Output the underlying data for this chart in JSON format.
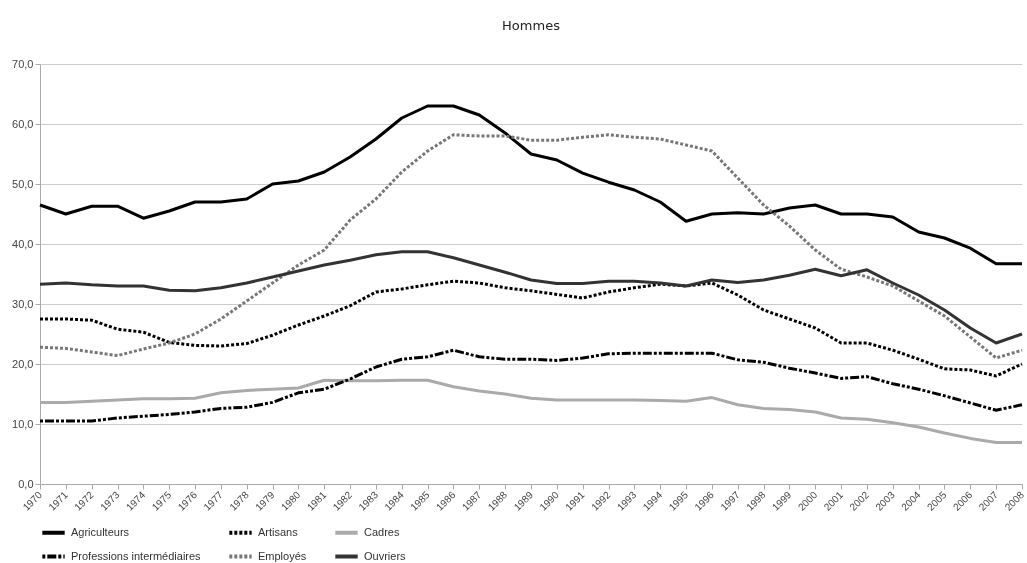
{
  "chart_data": {
    "type": "line",
    "title": "Hommes",
    "categories": [
      "1970",
      "1971",
      "1972",
      "1973",
      "1974",
      "1975",
      "1976",
      "1977",
      "1978",
      "1979",
      "1980",
      "1981",
      "1982",
      "1983",
      "1984",
      "1985",
      "1986",
      "1987",
      "1988",
      "1989",
      "1990",
      "1991",
      "1992",
      "1993",
      "1994",
      "1995",
      "1996",
      "1997",
      "1998",
      "1999",
      "2000",
      "2001",
      "2002",
      "2003",
      "2004",
      "2005",
      "2006",
      "2007",
      "2008"
    ],
    "series": [
      {
        "name": "Agriculteurs",
        "color": "#000000",
        "line_style": "solid",
        "values": [
          46.5,
          45,
          46.3,
          46.3,
          44.3,
          45.5,
          47,
          47,
          47.5,
          50,
          50.5,
          52,
          54.5,
          57.5,
          61,
          63,
          63,
          61.5,
          58.5,
          55,
          54,
          51.8,
          50.3,
          49,
          47,
          43.8,
          45,
          45.2,
          45,
          46,
          46.5,
          45,
          45,
          44.5,
          42,
          41,
          39.3,
          36.7,
          36.7
        ]
      },
      {
        "name": "Artisans",
        "color": "#000000",
        "line_style": "dotted",
        "values": [
          27.5,
          27.5,
          27.3,
          25.8,
          25.3,
          23.6,
          23.1,
          23,
          23.4,
          24.8,
          26.5,
          28,
          29.7,
          32,
          32.5,
          33.2,
          33.8,
          33.5,
          32.7,
          32.2,
          31.6,
          31,
          32,
          32.7,
          33.3,
          33,
          33.5,
          31.5,
          29,
          27.5,
          26,
          23.5,
          23.5,
          22.3,
          20.8,
          19.2,
          19,
          18,
          20
        ]
      },
      {
        "name": "Cadres",
        "color": "#aaaaaa",
        "line_style": "solid",
        "values": [
          13.6,
          13.6,
          13.8,
          14,
          14.2,
          14.2,
          14.3,
          15.2,
          15.6,
          15.8,
          16,
          17.3,
          17.2,
          17.2,
          17.3,
          17.3,
          16.2,
          15.5,
          15,
          14.3,
          14,
          14,
          14,
          14,
          13.9,
          13.8,
          14.4,
          13.2,
          12.6,
          12.4,
          12,
          11,
          10.8,
          10.2,
          9.5,
          8.5,
          7.6,
          6.9,
          6.9
        ]
      },
      {
        "name": "Professions intermédiaires",
        "color": "#000000",
        "line_style": "dashdot",
        "values": [
          10.5,
          10.5,
          10.5,
          11,
          11.3,
          11.6,
          12,
          12.6,
          12.8,
          13.6,
          15.2,
          15.8,
          17.5,
          19.5,
          20.8,
          21.2,
          22.3,
          21.2,
          20.8,
          20.8,
          20.6,
          21,
          21.7,
          21.8,
          21.8,
          21.8,
          21.8,
          20.7,
          20.3,
          19.3,
          18.5,
          17.6,
          17.9,
          16.7,
          15.8,
          14.7,
          13.5,
          12.3,
          13.2
        ]
      },
      {
        "name": "Employés",
        "color": "#777777",
        "line_style": "dotted",
        "values": [
          22.8,
          22.6,
          22,
          21.4,
          22.5,
          23.5,
          25,
          27.5,
          30.5,
          33.5,
          36.5,
          39,
          44,
          47.5,
          52,
          55.5,
          58.2,
          58,
          58,
          57.3,
          57.3,
          57.8,
          58.2,
          57.8,
          57.5,
          56.5,
          55.5,
          51,
          46.5,
          43,
          39,
          35.8,
          34.5,
          33,
          30.5,
          28,
          24.5,
          21,
          22.3
        ]
      },
      {
        "name": "Ouvriers",
        "color": "#333333",
        "line_style": "solid",
        "values": [
          33.3,
          33.5,
          33.2,
          33,
          33,
          32.3,
          32.2,
          32.7,
          33.5,
          34.5,
          35.5,
          36.5,
          37.3,
          38.2,
          38.7,
          38.7,
          37.7,
          36.5,
          35.3,
          34,
          33.4,
          33.4,
          33.8,
          33.8,
          33.5,
          33,
          34,
          33.6,
          34,
          34.8,
          35.8,
          34.7,
          35.7,
          33.5,
          31.5,
          29,
          26,
          23.5,
          25
        ]
      }
    ],
    "ylim": [
      0,
      70
    ],
    "yticks": [
      {
        "value": 0,
        "label": "0,0"
      },
      {
        "value": 10,
        "label": "10,0"
      },
      {
        "value": 20,
        "label": "20,0"
      },
      {
        "value": 30,
        "label": "30,0"
      },
      {
        "value": 40,
        "label": "40,0"
      },
      {
        "value": 50,
        "label": "50,0"
      },
      {
        "value": 60,
        "label": "60,0"
      },
      {
        "value": 70,
        "label": "70,0"
      }
    ],
    "grid": "y",
    "legend": "bottom",
    "marker": "none"
  }
}
